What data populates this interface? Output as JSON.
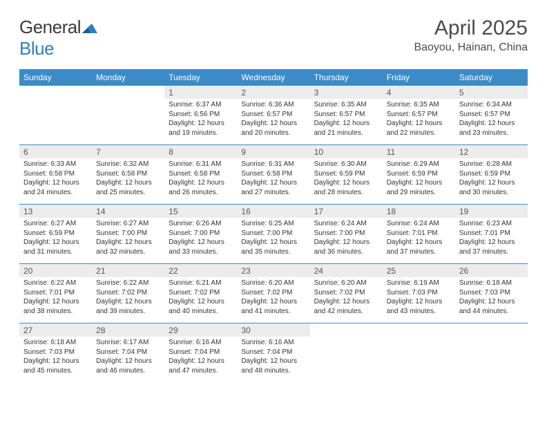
{
  "logo": {
    "text_general": "General",
    "text_blue": "Blue"
  },
  "header": {
    "title": "April 2025",
    "location": "Baoyou, Hainan, China"
  },
  "colors": {
    "header_bg": "#3b8bc8",
    "daynum_bg": "#ececec",
    "border": "#3b8bc8"
  },
  "day_headers": [
    "Sunday",
    "Monday",
    "Tuesday",
    "Wednesday",
    "Thursday",
    "Friday",
    "Saturday"
  ],
  "weeks": [
    [
      null,
      null,
      {
        "n": "1",
        "sr": "Sunrise: 6:37 AM",
        "ss": "Sunset: 6:56 PM",
        "dl": "Daylight: 12 hours and 19 minutes."
      },
      {
        "n": "2",
        "sr": "Sunrise: 6:36 AM",
        "ss": "Sunset: 6:57 PM",
        "dl": "Daylight: 12 hours and 20 minutes."
      },
      {
        "n": "3",
        "sr": "Sunrise: 6:35 AM",
        "ss": "Sunset: 6:57 PM",
        "dl": "Daylight: 12 hours and 21 minutes."
      },
      {
        "n": "4",
        "sr": "Sunrise: 6:35 AM",
        "ss": "Sunset: 6:57 PM",
        "dl": "Daylight: 12 hours and 22 minutes."
      },
      {
        "n": "5",
        "sr": "Sunrise: 6:34 AM",
        "ss": "Sunset: 6:57 PM",
        "dl": "Daylight: 12 hours and 23 minutes."
      }
    ],
    [
      {
        "n": "6",
        "sr": "Sunrise: 6:33 AM",
        "ss": "Sunset: 6:58 PM",
        "dl": "Daylight: 12 hours and 24 minutes."
      },
      {
        "n": "7",
        "sr": "Sunrise: 6:32 AM",
        "ss": "Sunset: 6:58 PM",
        "dl": "Daylight: 12 hours and 25 minutes."
      },
      {
        "n": "8",
        "sr": "Sunrise: 6:31 AM",
        "ss": "Sunset: 6:58 PM",
        "dl": "Daylight: 12 hours and 26 minutes."
      },
      {
        "n": "9",
        "sr": "Sunrise: 6:31 AM",
        "ss": "Sunset: 6:58 PM",
        "dl": "Daylight: 12 hours and 27 minutes."
      },
      {
        "n": "10",
        "sr": "Sunrise: 6:30 AM",
        "ss": "Sunset: 6:59 PM",
        "dl": "Daylight: 12 hours and 28 minutes."
      },
      {
        "n": "11",
        "sr": "Sunrise: 6:29 AM",
        "ss": "Sunset: 6:59 PM",
        "dl": "Daylight: 12 hours and 29 minutes."
      },
      {
        "n": "12",
        "sr": "Sunrise: 6:28 AM",
        "ss": "Sunset: 6:59 PM",
        "dl": "Daylight: 12 hours and 30 minutes."
      }
    ],
    [
      {
        "n": "13",
        "sr": "Sunrise: 6:27 AM",
        "ss": "Sunset: 6:59 PM",
        "dl": "Daylight: 12 hours and 31 minutes."
      },
      {
        "n": "14",
        "sr": "Sunrise: 6:27 AM",
        "ss": "Sunset: 7:00 PM",
        "dl": "Daylight: 12 hours and 32 minutes."
      },
      {
        "n": "15",
        "sr": "Sunrise: 6:26 AM",
        "ss": "Sunset: 7:00 PM",
        "dl": "Daylight: 12 hours and 33 minutes."
      },
      {
        "n": "16",
        "sr": "Sunrise: 6:25 AM",
        "ss": "Sunset: 7:00 PM",
        "dl": "Daylight: 12 hours and 35 minutes."
      },
      {
        "n": "17",
        "sr": "Sunrise: 6:24 AM",
        "ss": "Sunset: 7:00 PM",
        "dl": "Daylight: 12 hours and 36 minutes."
      },
      {
        "n": "18",
        "sr": "Sunrise: 6:24 AM",
        "ss": "Sunset: 7:01 PM",
        "dl": "Daylight: 12 hours and 37 minutes."
      },
      {
        "n": "19",
        "sr": "Sunrise: 6:23 AM",
        "ss": "Sunset: 7:01 PM",
        "dl": "Daylight: 12 hours and 37 minutes."
      }
    ],
    [
      {
        "n": "20",
        "sr": "Sunrise: 6:22 AM",
        "ss": "Sunset: 7:01 PM",
        "dl": "Daylight: 12 hours and 38 minutes."
      },
      {
        "n": "21",
        "sr": "Sunrise: 6:22 AM",
        "ss": "Sunset: 7:02 PM",
        "dl": "Daylight: 12 hours and 39 minutes."
      },
      {
        "n": "22",
        "sr": "Sunrise: 6:21 AM",
        "ss": "Sunset: 7:02 PM",
        "dl": "Daylight: 12 hours and 40 minutes."
      },
      {
        "n": "23",
        "sr": "Sunrise: 6:20 AM",
        "ss": "Sunset: 7:02 PM",
        "dl": "Daylight: 12 hours and 41 minutes."
      },
      {
        "n": "24",
        "sr": "Sunrise: 6:20 AM",
        "ss": "Sunset: 7:02 PM",
        "dl": "Daylight: 12 hours and 42 minutes."
      },
      {
        "n": "25",
        "sr": "Sunrise: 6:19 AM",
        "ss": "Sunset: 7:03 PM",
        "dl": "Daylight: 12 hours and 43 minutes."
      },
      {
        "n": "26",
        "sr": "Sunrise: 6:18 AM",
        "ss": "Sunset: 7:03 PM",
        "dl": "Daylight: 12 hours and 44 minutes."
      }
    ],
    [
      {
        "n": "27",
        "sr": "Sunrise: 6:18 AM",
        "ss": "Sunset: 7:03 PM",
        "dl": "Daylight: 12 hours and 45 minutes."
      },
      {
        "n": "28",
        "sr": "Sunrise: 6:17 AM",
        "ss": "Sunset: 7:04 PM",
        "dl": "Daylight: 12 hours and 46 minutes."
      },
      {
        "n": "29",
        "sr": "Sunrise: 6:16 AM",
        "ss": "Sunset: 7:04 PM",
        "dl": "Daylight: 12 hours and 47 minutes."
      },
      {
        "n": "30",
        "sr": "Sunrise: 6:16 AM",
        "ss": "Sunset: 7:04 PM",
        "dl": "Daylight: 12 hours and 48 minutes."
      },
      null,
      null,
      null
    ]
  ]
}
